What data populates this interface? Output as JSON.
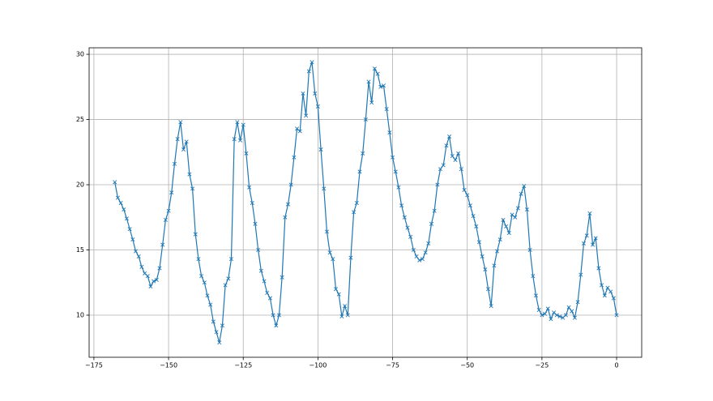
{
  "chart_data": {
    "type": "line",
    "color": "#1f77b4",
    "marker": "x",
    "grid": true,
    "xlim": [
      -176.6,
      8.4
    ],
    "ylim": [
      6.77,
      30.5
    ],
    "xticks": [
      {
        "value": -175,
        "label": "−175"
      },
      {
        "value": -150,
        "label": "−150"
      },
      {
        "value": -125,
        "label": "−125"
      },
      {
        "value": -100,
        "label": "−100"
      },
      {
        "value": -75,
        "label": "−75"
      },
      {
        "value": -50,
        "label": "−50"
      },
      {
        "value": -25,
        "label": "−25"
      },
      0
    ],
    "yticks": [
      10,
      15,
      20,
      25,
      30
    ],
    "x": [
      -168,
      -167,
      -166,
      -165,
      -164,
      -163,
      -162,
      -161,
      -160,
      -159,
      -158,
      -157,
      -156,
      -155,
      -154,
      -153,
      -152,
      -151,
      -150,
      -149,
      -148,
      -147,
      -146,
      -145,
      -144,
      -143,
      -142,
      -141,
      -140,
      -139,
      -138,
      -137,
      -136,
      -135,
      -134,
      -133,
      -132,
      -131,
      -130,
      -129,
      -128,
      -127,
      -126,
      -125,
      -124,
      -123,
      -122,
      -121,
      -120,
      -119,
      -118,
      -117,
      -116,
      -115,
      -114,
      -113,
      -112,
      -111,
      -110,
      -109,
      -108,
      -107,
      -106,
      -105,
      -104,
      -103,
      -102,
      -101,
      -100,
      -99,
      -98,
      -97,
      -96,
      -95,
      -94,
      -93,
      -92,
      -91,
      -90,
      -89,
      -88,
      -87,
      -86,
      -85,
      -84,
      -83,
      -82,
      -81,
      -80,
      -79,
      -78,
      -77,
      -76,
      -75,
      -74,
      -73,
      -72,
      -71,
      -70,
      -69,
      -68,
      -67,
      -66,
      -65,
      -64,
      -63,
      -62,
      -61,
      -60,
      -59,
      -58,
      -57,
      -56,
      -55,
      -54,
      -53,
      -52,
      -51,
      -50,
      -49,
      -48,
      -47,
      -46,
      -45,
      -44,
      -43,
      -42,
      -41,
      -40,
      -39,
      -38,
      -37,
      -36,
      -35,
      -34,
      -33,
      -32,
      -31,
      -30,
      -29,
      -28,
      -27,
      -26,
      -25,
      -24,
      -23,
      -22,
      -21,
      -20,
      -19,
      -18,
      -17,
      -16,
      -15,
      -14,
      -13,
      -12,
      -11,
      -10,
      -9,
      -8,
      -7,
      -6,
      -5,
      -4,
      -3,
      -2,
      -1,
      0
    ],
    "values": [
      20.2,
      19.0,
      18.6,
      18.1,
      17.4,
      16.6,
      15.8,
      14.9,
      14.5,
      13.7,
      13.2,
      13.0,
      12.2,
      12.6,
      12.7,
      13.6,
      15.4,
      17.3,
      18.0,
      19.4,
      21.6,
      23.5,
      24.8,
      22.7,
      23.3,
      20.8,
      19.7,
      16.2,
      14.3,
      13.0,
      12.5,
      11.5,
      10.8,
      9.5,
      8.7,
      7.9,
      9.2,
      12.3,
      12.8,
      14.3,
      23.5,
      24.8,
      23.4,
      24.6,
      22.4,
      19.8,
      18.6,
      17.0,
      15.0,
      13.4,
      12.6,
      11.7,
      11.3,
      10.0,
      9.2,
      10.0,
      12.9,
      17.5,
      18.5,
      20.0,
      22.1,
      24.3,
      24.1,
      27.0,
      25.3,
      28.7,
      29.4,
      27.0,
      26.0,
      22.7,
      19.7,
      16.4,
      14.8,
      14.3,
      12.0,
      11.6,
      9.9,
      10.7,
      10.0,
      14.4,
      17.9,
      18.6,
      21.0,
      22.4,
      25.0,
      27.9,
      26.3,
      28.9,
      28.5,
      27.5,
      27.6,
      25.8,
      24.0,
      22.1,
      21.0,
      19.8,
      18.4,
      17.5,
      16.7,
      16.0,
      15.0,
      14.5,
      14.2,
      14.3,
      14.8,
      15.5,
      17.0,
      18.0,
      20.0,
      21.2,
      21.5,
      23.0,
      23.7,
      22.2,
      21.9,
      22.4,
      21.2,
      19.6,
      19.2,
      18.4,
      17.6,
      16.8,
      15.6,
      14.5,
      13.5,
      12.0,
      10.7,
      13.8,
      14.9,
      15.8,
      17.3,
      16.8,
      16.3,
      17.7,
      17.5,
      18.2,
      19.3,
      19.9,
      18.1,
      15.0,
      13.0,
      11.5,
      10.4,
      10.0,
      10.1,
      10.5,
      9.7,
      10.2,
      10.0,
      9.9,
      9.8,
      10.0,
      10.6,
      10.3,
      9.8,
      11.0,
      13.1,
      15.5,
      16.1,
      17.8,
      15.4,
      15.9,
      13.6,
      12.3,
      11.5,
      12.1,
      11.8,
      11.3,
      10.0
    ]
  }
}
